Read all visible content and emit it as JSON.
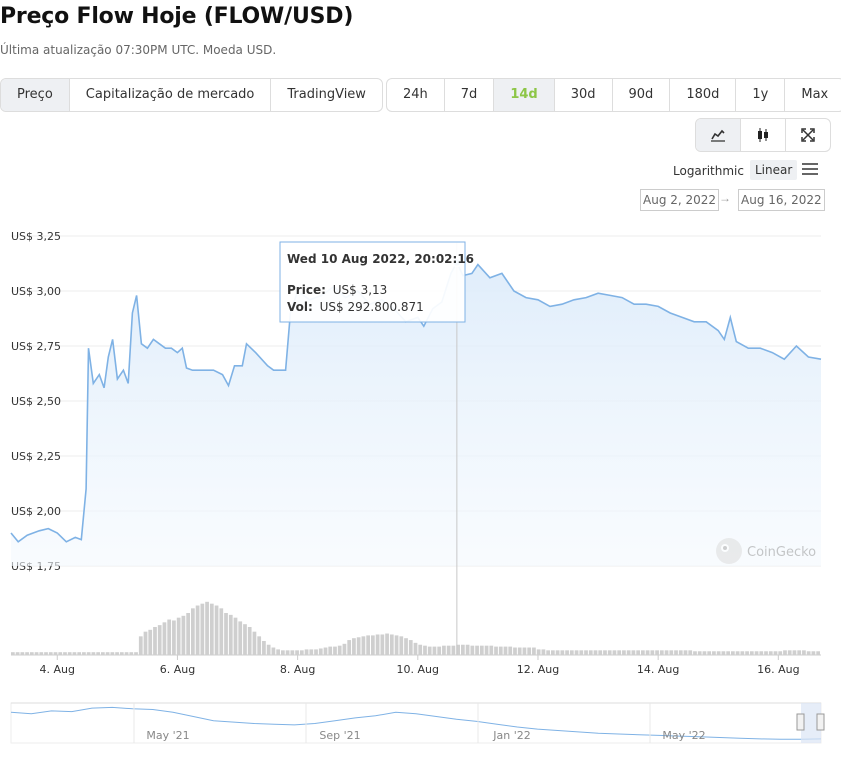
{
  "header": {
    "title": "Preço Flow Hoje (FLOW/USD)",
    "subtitle": "Última atualização 07:30PM UTC. Moeda USD."
  },
  "view_tabs": [
    "Preço",
    "Capitalização de mercado",
    "TradingView"
  ],
  "range_tabs": [
    "24h",
    "7d",
    "14d",
    "30d",
    "90d",
    "180d",
    "1y",
    "Max"
  ],
  "selected_view": "Preço",
  "selected_range": "14d",
  "icons": [
    "line-chart-icon",
    "candlestick-icon",
    "fullscreen-icon"
  ],
  "scale": {
    "log_label": "Logarithmic",
    "linear_label": "Linear",
    "selected": "Linear"
  },
  "date_range": {
    "from": "Aug 2, 2022",
    "to": "Aug 16, 2022",
    "arrow": "→"
  },
  "tooltip": {
    "date": "Wed 10 Aug 2022, 20:02:16",
    "price_label": "Price:",
    "price_value": "US$ 3,13",
    "vol_label": "Vol:",
    "vol_value": "US$ 292.800.871"
  },
  "watermark": "CoinGecko",
  "colors": {
    "line": "#7fb2e5",
    "fill_top": "#dcebfa",
    "volume": "#cfcfcf",
    "accent": "#8dc647"
  },
  "chart_data": {
    "type": "line",
    "y_ticks": [
      "US$ 3,25",
      "US$ 3,00",
      "US$ 2,75",
      "US$ 2,50",
      "US$ 2,25",
      "US$ 2,00",
      "US$ 1,75"
    ],
    "y_tick_values": [
      3.25,
      3.0,
      2.75,
      2.5,
      2.25,
      2.0,
      1.75
    ],
    "ylim": [
      1.75,
      3.25
    ],
    "xlim": [
      3.23,
      16.71
    ],
    "x_ticks": [
      "4. Aug",
      "6. Aug",
      "8. Aug",
      "10. Aug",
      "12. Aug",
      "14. Aug",
      "16. Aug"
    ],
    "x_tick_values": [
      4,
      6,
      8,
      10,
      12,
      14,
      16
    ],
    "x_unit": "day of August 2022",
    "series": [
      {
        "values": [
          [
            3.23,
            1.9
          ],
          [
            3.35,
            1.86
          ],
          [
            3.5,
            1.89
          ],
          [
            3.7,
            1.91
          ],
          [
            3.85,
            1.92
          ],
          [
            4.0,
            1.9
          ],
          [
            4.15,
            1.86
          ],
          [
            4.3,
            1.88
          ],
          [
            4.4,
            1.87
          ],
          [
            4.48,
            2.1
          ],
          [
            4.52,
            2.74
          ],
          [
            4.6,
            2.58
          ],
          [
            4.7,
            2.62
          ],
          [
            4.78,
            2.56
          ],
          [
            4.85,
            2.7
          ],
          [
            4.92,
            2.78
          ],
          [
            5.0,
            2.6
          ],
          [
            5.1,
            2.64
          ],
          [
            5.18,
            2.58
          ],
          [
            5.25,
            2.9
          ],
          [
            5.32,
            2.98
          ],
          [
            5.4,
            2.76
          ],
          [
            5.5,
            2.74
          ],
          [
            5.6,
            2.78
          ],
          [
            5.7,
            2.76
          ],
          [
            5.8,
            2.74
          ],
          [
            5.9,
            2.74
          ],
          [
            6.0,
            2.72
          ],
          [
            6.08,
            2.74
          ],
          [
            6.15,
            2.65
          ],
          [
            6.25,
            2.64
          ],
          [
            6.4,
            2.64
          ],
          [
            6.6,
            2.64
          ],
          [
            6.75,
            2.62
          ],
          [
            6.85,
            2.57
          ],
          [
            6.95,
            2.66
          ],
          [
            7.08,
            2.66
          ],
          [
            7.15,
            2.76
          ],
          [
            7.3,
            2.72
          ],
          [
            7.5,
            2.66
          ],
          [
            7.6,
            2.64
          ],
          [
            7.8,
            2.64
          ],
          [
            7.88,
            2.9
          ],
          [
            8.0,
            3.0
          ],
          [
            8.2,
            2.96
          ],
          [
            8.4,
            2.98
          ],
          [
            8.6,
            3.02
          ],
          [
            8.8,
            2.97
          ],
          [
            9.0,
            3.0
          ],
          [
            9.2,
            2.94
          ],
          [
            9.4,
            2.96
          ],
          [
            9.6,
            2.92
          ],
          [
            9.8,
            2.86
          ],
          [
            10.0,
            2.88
          ],
          [
            10.1,
            2.84
          ],
          [
            10.25,
            2.92
          ],
          [
            10.4,
            2.95
          ],
          [
            10.55,
            3.08
          ],
          [
            10.65,
            3.13
          ],
          [
            10.75,
            3.07
          ],
          [
            10.9,
            3.08
          ],
          [
            11.0,
            3.12
          ],
          [
            11.2,
            3.06
          ],
          [
            11.4,
            3.08
          ],
          [
            11.6,
            3.0
          ],
          [
            11.8,
            2.97
          ],
          [
            12.0,
            2.96
          ],
          [
            12.2,
            2.93
          ],
          [
            12.4,
            2.94
          ],
          [
            12.6,
            2.96
          ],
          [
            12.8,
            2.97
          ],
          [
            13.0,
            2.99
          ],
          [
            13.2,
            2.98
          ],
          [
            13.4,
            2.97
          ],
          [
            13.6,
            2.94
          ],
          [
            13.8,
            2.94
          ],
          [
            14.0,
            2.93
          ],
          [
            14.2,
            2.9
          ],
          [
            14.4,
            2.88
          ],
          [
            14.6,
            2.86
          ],
          [
            14.8,
            2.86
          ],
          [
            15.0,
            2.82
          ],
          [
            15.1,
            2.78
          ],
          [
            15.2,
            2.88
          ],
          [
            15.3,
            2.77
          ],
          [
            15.5,
            2.74
          ],
          [
            15.7,
            2.74
          ],
          [
            15.9,
            2.72
          ],
          [
            16.1,
            2.69
          ],
          [
            16.3,
            2.75
          ],
          [
            16.5,
            2.7
          ],
          [
            16.71,
            2.69
          ]
        ]
      }
    ],
    "volume": [
      3,
      3,
      3,
      3,
      3,
      3,
      3,
      3,
      3,
      3,
      3,
      3,
      3,
      3,
      3,
      3,
      3,
      3,
      3,
      3,
      3,
      3,
      3,
      3,
      3,
      3,
      3,
      20,
      25,
      27,
      30,
      32,
      35,
      38,
      37,
      40,
      42,
      45,
      50,
      53,
      55,
      57,
      55,
      53,
      50,
      45,
      43,
      40,
      36,
      33,
      30,
      25,
      20,
      15,
      11,
      8,
      6,
      5,
      5,
      5,
      5,
      5,
      6,
      6,
      6,
      7,
      8,
      9,
      9,
      10,
      12,
      16,
      18,
      19,
      20,
      21,
      21,
      22,
      22,
      23,
      22,
      21,
      20,
      18,
      16,
      13,
      11,
      10,
      9,
      9,
      9,
      10,
      10,
      10,
      11,
      11,
      11,
      10,
      10,
      10,
      10,
      10,
      9,
      9,
      9,
      9,
      8,
      8,
      8,
      8,
      8,
      6,
      6,
      5,
      5,
      5,
      5,
      5,
      5,
      5,
      5,
      5,
      5,
      5,
      5,
      5,
      5,
      5,
      5,
      5,
      5,
      5,
      5,
      5,
      5,
      5,
      5,
      5,
      5,
      5,
      5,
      5,
      5,
      5,
      4,
      4,
      4,
      4,
      4,
      4,
      4,
      4,
      4,
      4,
      4,
      4,
      4,
      4,
      4,
      4,
      4,
      4,
      4,
      5,
      5,
      5,
      5,
      5,
      4,
      4,
      4
    ],
    "navigator": {
      "ticks": [
        "May '21",
        "Sep '21",
        "Jan '22",
        "May '22"
      ],
      "values": [
        0.82,
        0.78,
        0.86,
        0.84,
        0.94,
        0.96,
        0.92,
        0.9,
        0.82,
        0.7,
        0.58,
        0.54,
        0.5,
        0.48,
        0.46,
        0.5,
        0.58,
        0.66,
        0.72,
        0.82,
        0.78,
        0.7,
        0.62,
        0.56,
        0.48,
        0.4,
        0.34,
        0.3,
        0.26,
        0.22,
        0.2,
        0.18,
        0.16,
        0.14,
        0.12,
        0.1,
        0.08,
        0.06,
        0.05,
        0.05,
        0.06
      ]
    }
  }
}
